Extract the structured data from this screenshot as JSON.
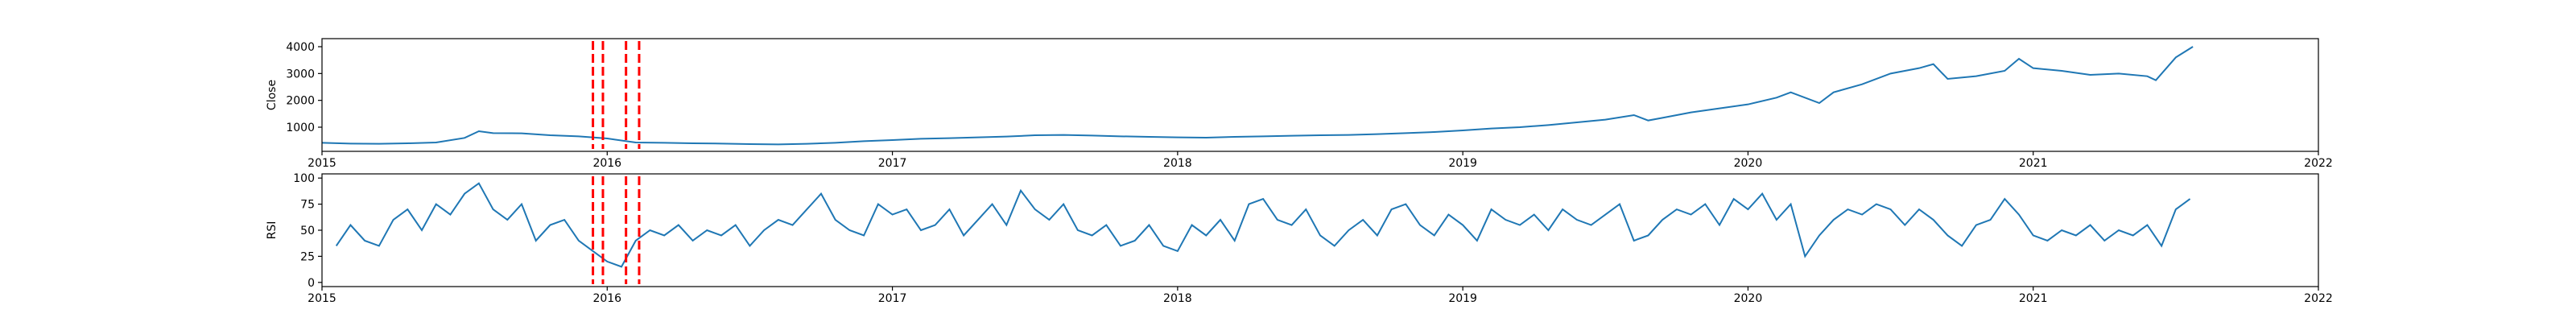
{
  "chart_data": [
    {
      "type": "line",
      "ylabel": "Close",
      "color": "#1f77b4",
      "x": [
        2015.0,
        2015.1,
        2015.2,
        2015.3,
        2015.4,
        2015.5,
        2015.55,
        2015.6,
        2015.7,
        2015.8,
        2015.9,
        2016.0,
        2016.1,
        2016.2,
        2016.3,
        2016.4,
        2016.5,
        2016.6,
        2016.7,
        2016.8,
        2016.9,
        2017.0,
        2017.1,
        2017.2,
        2017.3,
        2017.4,
        2017.5,
        2017.6,
        2017.7,
        2017.8,
        2017.9,
        2018.0,
        2018.1,
        2018.2,
        2018.3,
        2018.4,
        2018.5,
        2018.6,
        2018.7,
        2018.8,
        2018.9,
        2019.0,
        2019.1,
        2019.2,
        2019.3,
        2019.4,
        2019.5,
        2019.6,
        2019.65,
        2019.7,
        2019.8,
        2019.9,
        2020.0,
        2020.1,
        2020.15,
        2020.25,
        2020.3,
        2020.4,
        2020.5,
        2020.6,
        2020.65,
        2020.7,
        2020.8,
        2020.9,
        2020.95,
        2021.0,
        2021.1,
        2021.2,
        2021.3,
        2021.4,
        2021.43,
        2021.5,
        2021.56
      ],
      "values": [
        420,
        390,
        380,
        400,
        430,
        600,
        850,
        780,
        770,
        700,
        660,
        580,
        430,
        420,
        400,
        390,
        370,
        360,
        380,
        420,
        480,
        520,
        570,
        590,
        620,
        650,
        700,
        710,
        690,
        660,
        640,
        620,
        610,
        640,
        660,
        680,
        700,
        710,
        740,
        780,
        820,
        880,
        950,
        1000,
        1080,
        1180,
        1280,
        1450,
        1250,
        1350,
        1550,
        1700,
        1850,
        2100,
        2300,
        1900,
        2300,
        2600,
        3000,
        3200,
        3350,
        2800,
        2900,
        3100,
        3550,
        3200,
        3100,
        2950,
        3000,
        2900,
        2750,
        3600,
        4000
      ],
      "xlim": [
        2015,
        2022
      ],
      "xticks": [
        2015,
        2016,
        2017,
        2018,
        2019,
        2020,
        2021,
        2022
      ],
      "ylim": [
        100,
        4300
      ],
      "yticks": [
        1000,
        2000,
        3000,
        4000
      ],
      "vlines": [
        2015.95,
        2015.985,
        2016.066,
        2016.112
      ],
      "vline_color": "#ff0000"
    },
    {
      "type": "line",
      "ylabel": "RSI",
      "color": "#1f77b4",
      "x": [
        2015.05,
        2015.1,
        2015.15,
        2015.2,
        2015.25,
        2015.3,
        2015.35,
        2015.4,
        2015.45,
        2015.5,
        2015.55,
        2015.6,
        2015.65,
        2015.7,
        2015.75,
        2015.8,
        2015.85,
        2015.9,
        2015.95,
        2016.0,
        2016.05,
        2016.1,
        2016.15,
        2016.2,
        2016.25,
        2016.3,
        2016.35,
        2016.4,
        2016.45,
        2016.5,
        2016.55,
        2016.6,
        2016.65,
        2016.7,
        2016.75,
        2016.8,
        2016.85,
        2016.9,
        2016.95,
        2017.0,
        2017.05,
        2017.1,
        2017.15,
        2017.2,
        2017.25,
        2017.3,
        2017.35,
        2017.4,
        2017.45,
        2017.5,
        2017.55,
        2017.6,
        2017.65,
        2017.7,
        2017.75,
        2017.8,
        2017.85,
        2017.9,
        2017.95,
        2018.0,
        2018.05,
        2018.1,
        2018.15,
        2018.2,
        2018.25,
        2018.3,
        2018.35,
        2018.4,
        2018.45,
        2018.5,
        2018.55,
        2018.6,
        2018.65,
        2018.7,
        2018.75,
        2018.8,
        2018.85,
        2018.9,
        2018.95,
        2019.0,
        2019.05,
        2019.1,
        2019.15,
        2019.2,
        2019.25,
        2019.3,
        2019.35,
        2019.4,
        2019.45,
        2019.5,
        2019.55,
        2019.6,
        2019.65,
        2019.7,
        2019.75,
        2019.8,
        2019.85,
        2019.9,
        2019.95,
        2020.0,
        2020.05,
        2020.1,
        2020.15,
        2020.2,
        2020.25,
        2020.3,
        2020.35,
        2020.4,
        2020.45,
        2020.5,
        2020.55,
        2020.6,
        2020.65,
        2020.7,
        2020.75,
        2020.8,
        2020.85,
        2020.9,
        2020.95,
        2021.0,
        2021.05,
        2021.1,
        2021.15,
        2021.2,
        2021.25,
        2021.3,
        2021.35,
        2021.4,
        2021.45,
        2021.5,
        2021.55
      ],
      "values": [
        35,
        55,
        40,
        35,
        60,
        70,
        50,
        75,
        65,
        85,
        95,
        70,
        60,
        75,
        40,
        55,
        60,
        40,
        30,
        20,
        15,
        40,
        50,
        45,
        55,
        40,
        50,
        45,
        55,
        35,
        50,
        60,
        55,
        70,
        85,
        60,
        50,
        45,
        75,
        65,
        70,
        50,
        55,
        70,
        45,
        60,
        75,
        55,
        88,
        70,
        60,
        75,
        50,
        45,
        55,
        35,
        40,
        55,
        35,
        30,
        55,
        45,
        60,
        40,
        75,
        80,
        60,
        55,
        70,
        45,
        35,
        50,
        60,
        45,
        70,
        75,
        55,
        45,
        65,
        55,
        40,
        70,
        60,
        55,
        65,
        50,
        70,
        60,
        55,
        65,
        75,
        40,
        45,
        60,
        70,
        65,
        75,
        55,
        80,
        70,
        85,
        60,
        75,
        25,
        45,
        60,
        70,
        65,
        75,
        70,
        55,
        70,
        60,
        45,
        35,
        55,
        60,
        80,
        65,
        45,
        40,
        50,
        45,
        55,
        40,
        50,
        45,
        55,
        35,
        70,
        80
      ],
      "xlim": [
        2015,
        2022
      ],
      "xticks": [
        2015,
        2016,
        2017,
        2018,
        2019,
        2020,
        2021,
        2022
      ],
      "ylim": [
        -4,
        104
      ],
      "yticks": [
        0,
        25,
        50,
        75,
        100
      ],
      "vlines": [
        2015.95,
        2015.985,
        2016.066,
        2016.112
      ],
      "vline_color": "#ff0000"
    }
  ]
}
